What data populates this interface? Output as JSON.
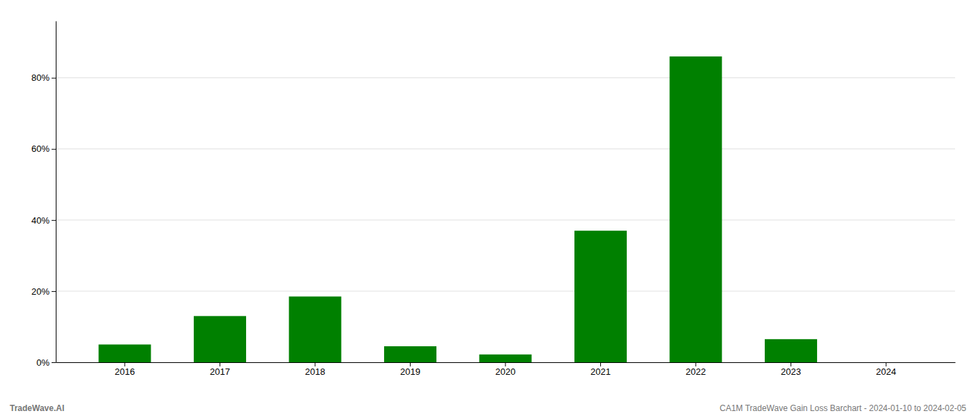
{
  "chart_data": {
    "type": "bar",
    "categories": [
      "2016",
      "2017",
      "2018",
      "2019",
      "2020",
      "2021",
      "2022",
      "2023",
      "2024"
    ],
    "values": [
      0.05,
      0.13,
      0.185,
      0.045,
      0.022,
      0.37,
      0.86,
      0.065,
      0.0
    ],
    "color": "#008000",
    "ylim": [
      0,
      0.96
    ],
    "yticks": [
      {
        "value": 0.0,
        "label": "0%"
      },
      {
        "value": 0.2,
        "label": "20%"
      },
      {
        "value": 0.4,
        "label": "40%"
      },
      {
        "value": 0.6,
        "label": "60%"
      },
      {
        "value": 0.8,
        "label": "80%"
      }
    ],
    "grid": true,
    "annotations": [
      "TradeWave.AI",
      "CA1M TradeWave Gain Loss Barchart - 2024-01-10 to 2024-02-05"
    ]
  }
}
